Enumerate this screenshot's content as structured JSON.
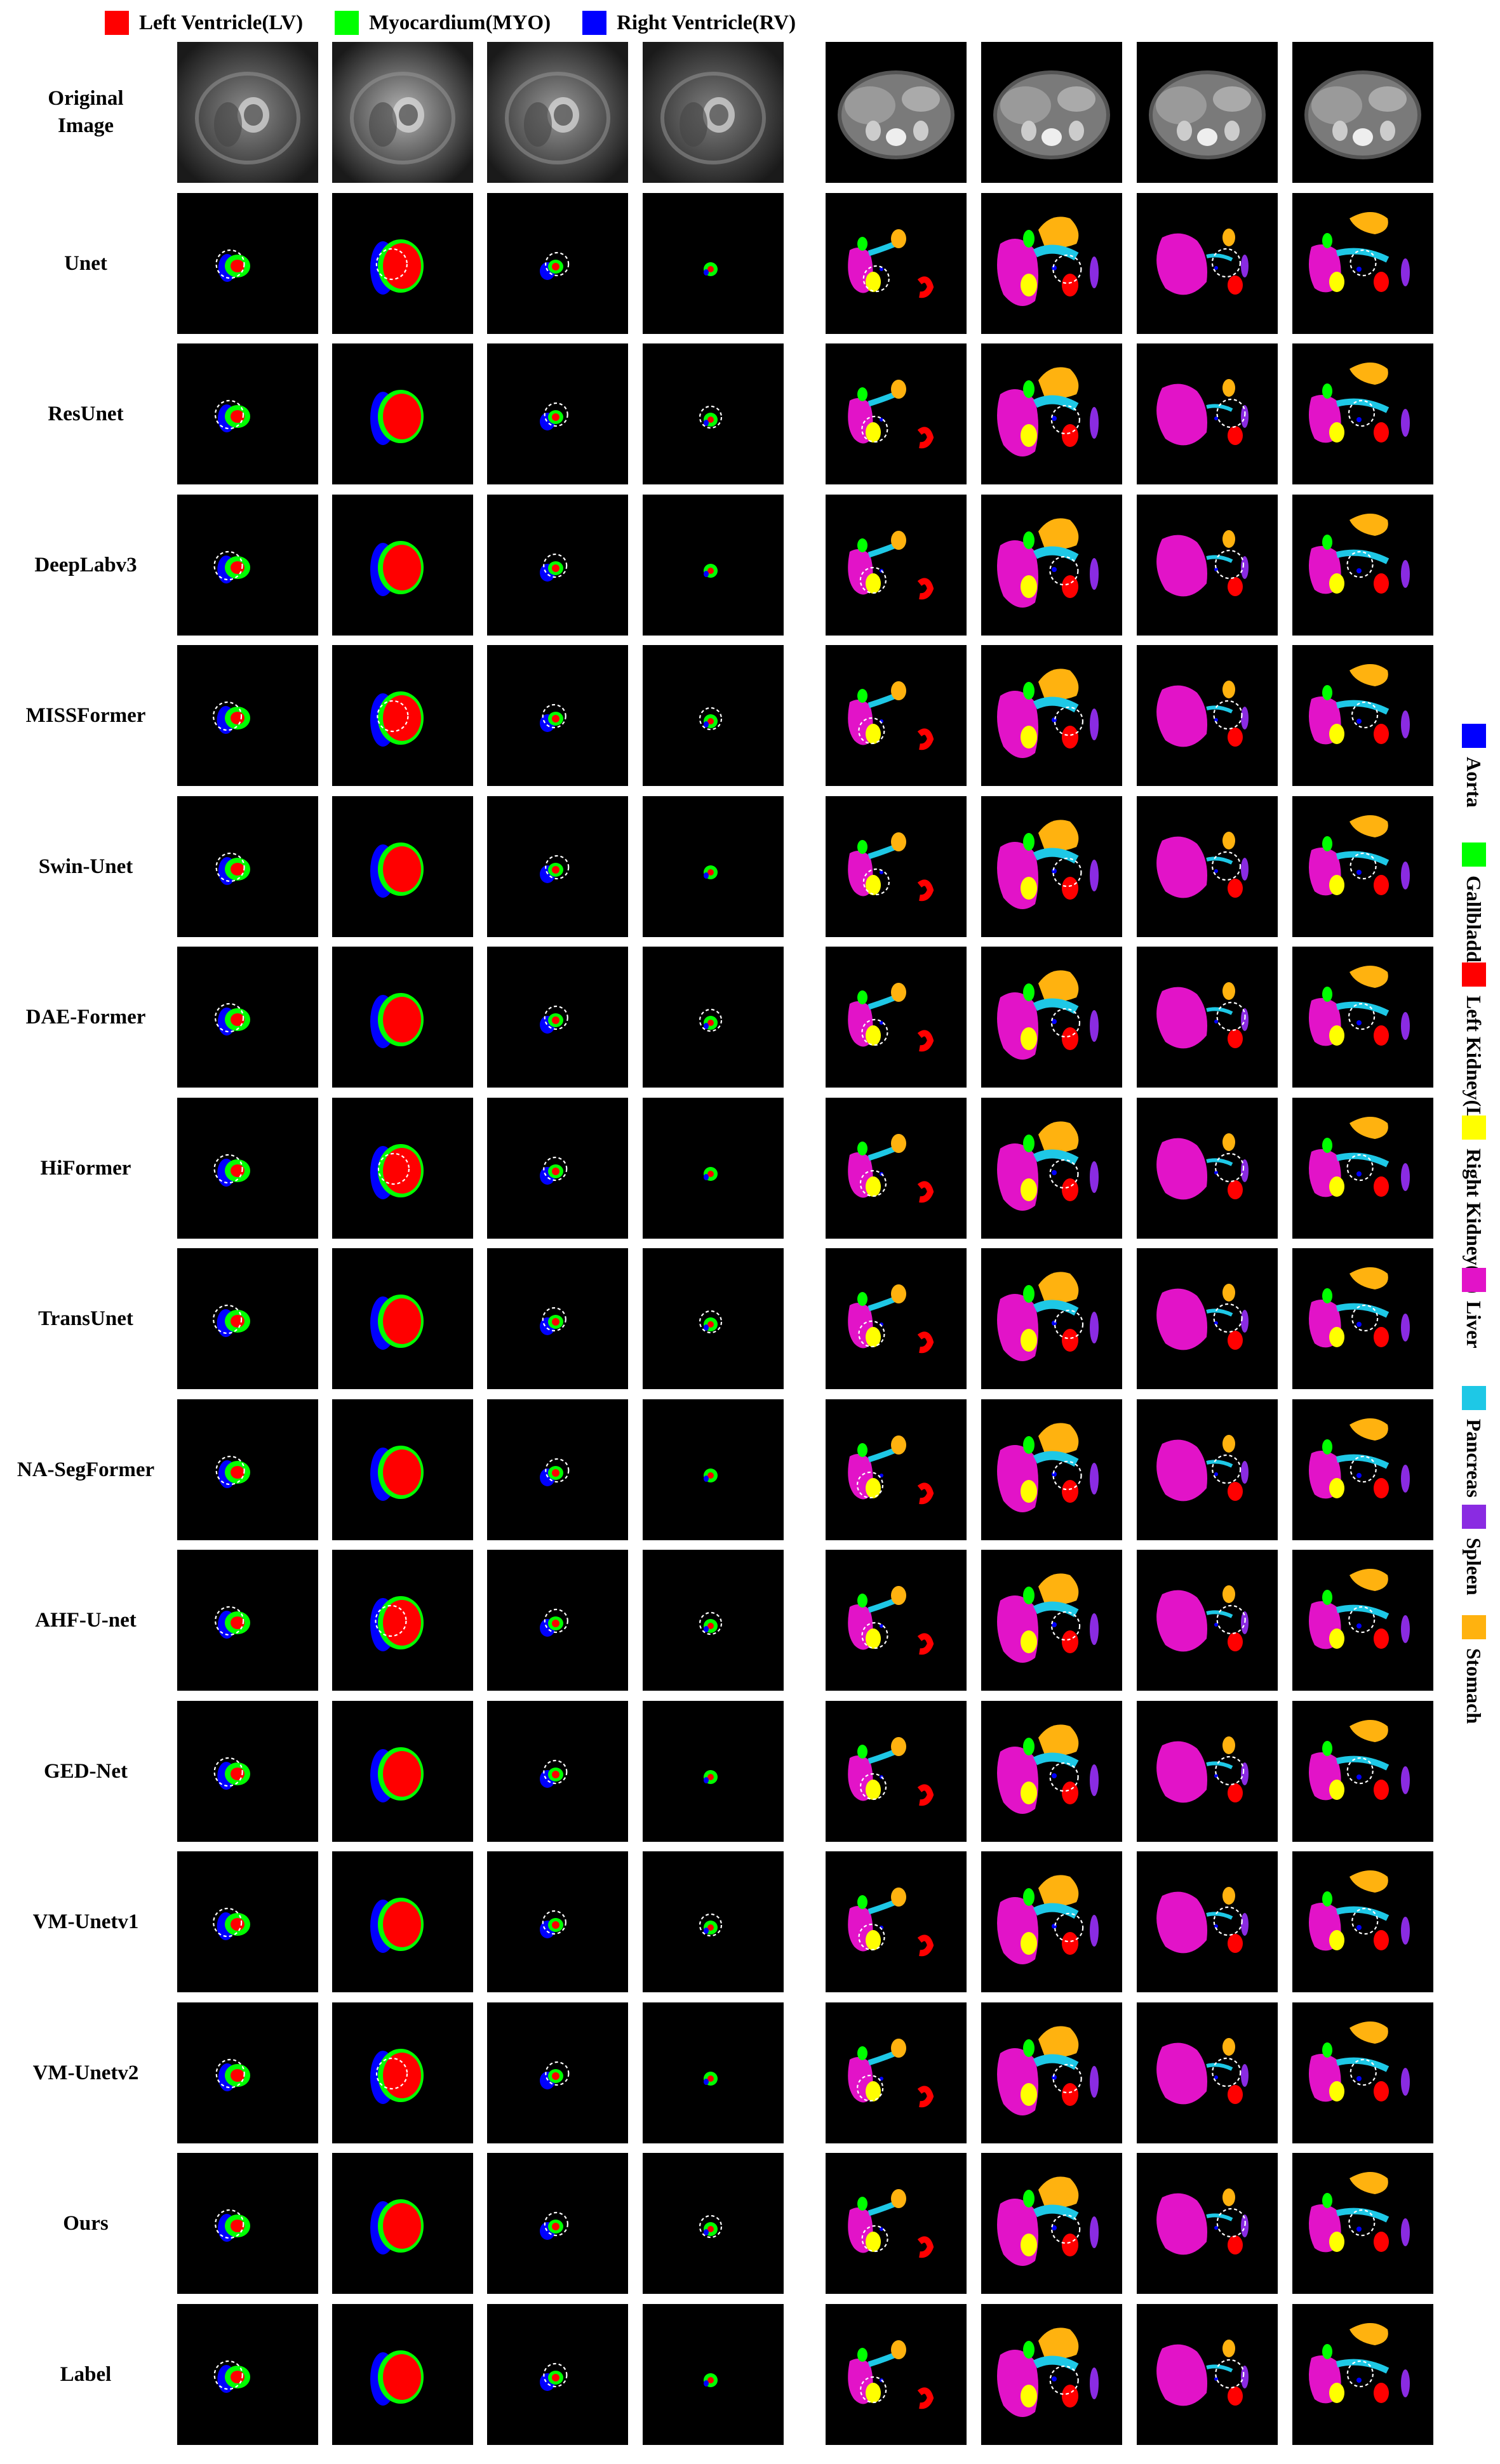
{
  "colors": {
    "lv": "#ff0000",
    "myo": "#00ff00",
    "rv": "#0000ff",
    "aorta": "#0000ff",
    "gallbladder": "#00ff00",
    "kidney_l": "#ff0000",
    "kidney_r": "#ffff00",
    "liver": "#e213c8",
    "pancreas": "#1ec8e6",
    "spleen": "#8a2be2",
    "stomach": "#ffb20f"
  },
  "top_legend": [
    {
      "label": "Left Ventricle(LV)",
      "color": "#ff0000"
    },
    {
      "label": "Myocardium(MYO)",
      "color": "#00ff00"
    },
    {
      "label": "Right Ventricle(RV)",
      "color": "#0000ff"
    }
  ],
  "side_legend": [
    {
      "label": "Aorta",
      "color": "#0000ff"
    },
    {
      "label": "Gallbladder",
      "color": "#00ff00"
    },
    {
      "label": "Left Kidney(L)",
      "color": "#ff0000"
    },
    {
      "label": "Right Kidney(R)",
      "color": "#ffff00"
    },
    {
      "label": "Liver",
      "color": "#e213c8"
    },
    {
      "label": "Pancreas",
      "color": "#1ec8e6"
    },
    {
      "label": "Spleen",
      "color": "#8a2be2"
    },
    {
      "label": "Stomach",
      "color": "#ffb20f"
    }
  ],
  "rows": [
    {
      "label": "Original\nImage",
      "kind": "original"
    },
    {
      "label": "Unet",
      "kind": "seg"
    },
    {
      "label": "ResUnet",
      "kind": "seg"
    },
    {
      "label": "DeepLabv3",
      "kind": "seg"
    },
    {
      "label": "MISSFormer",
      "kind": "seg"
    },
    {
      "label": "Swin-Unet",
      "kind": "seg"
    },
    {
      "label": "DAE-Former",
      "kind": "seg"
    },
    {
      "label": "HiFormer",
      "kind": "seg"
    },
    {
      "label": "TransUnet",
      "kind": "seg"
    },
    {
      "label": "NA-SegFormer",
      "kind": "seg"
    },
    {
      "label": "AHF-U-net",
      "kind": "seg"
    },
    {
      "label": "GED-Net",
      "kind": "seg"
    },
    {
      "label": "VM-Unetv1",
      "kind": "seg"
    },
    {
      "label": "VM-Unetv2",
      "kind": "seg"
    },
    {
      "label": "Ours",
      "kind": "seg"
    },
    {
      "label": "Label",
      "kind": "seg"
    }
  ]
}
